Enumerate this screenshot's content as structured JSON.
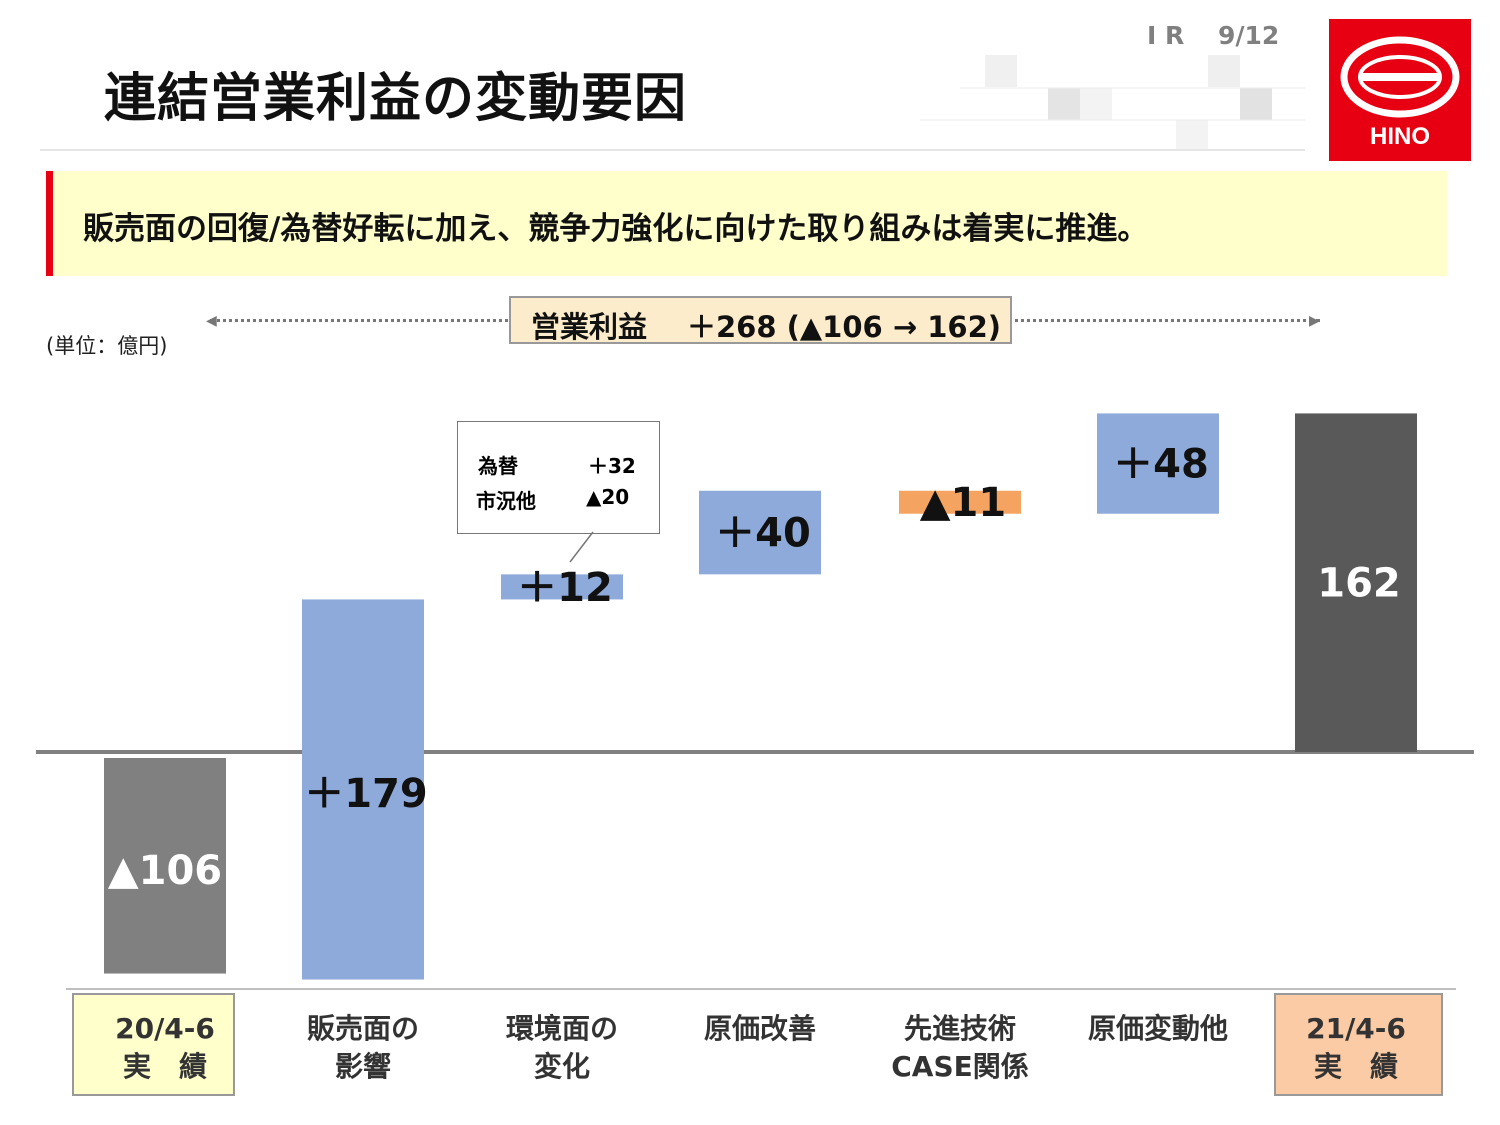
{
  "header": {
    "title": "連結営業利益の変動要因",
    "page": "I R　 9/12",
    "logo_text": "HINO"
  },
  "banner": "販売面の回復/為替好転に加え、競争力強化に向けた取り組みは着実に推進。",
  "unit": "(単位：億円)",
  "summary": {
    "label": "営業利益",
    "value": "＋268 (▲106 → 162)"
  },
  "callout": {
    "rows": [
      {
        "label": "為替",
        "value": "＋32"
      },
      {
        "label": "市況他",
        "value": "▲20"
      }
    ]
  },
  "colors": {
    "total": "#808080",
    "final": "#595959",
    "up": "#8eaadb",
    "down": "#f4a460",
    "brand": "#e60012"
  },
  "chart_data": {
    "type": "waterfall",
    "categories": [
      "20/4-6\n実　績",
      "販売面の\n影響",
      "環境面の\n変化",
      "原価改善",
      "先進技術\nCASE関係",
      "原価変動他",
      "21/4-6\n実　績"
    ],
    "values": [
      -106,
      179,
      12,
      40,
      -11,
      48,
      162
    ],
    "kinds": [
      "total",
      "delta",
      "delta",
      "delta",
      "delta",
      "delta",
      "total"
    ],
    "labels": [
      "▲106",
      "＋179",
      "＋12",
      "＋40",
      "▲11",
      "＋48",
      "162"
    ],
    "ylim": [
      -110,
      170
    ]
  }
}
